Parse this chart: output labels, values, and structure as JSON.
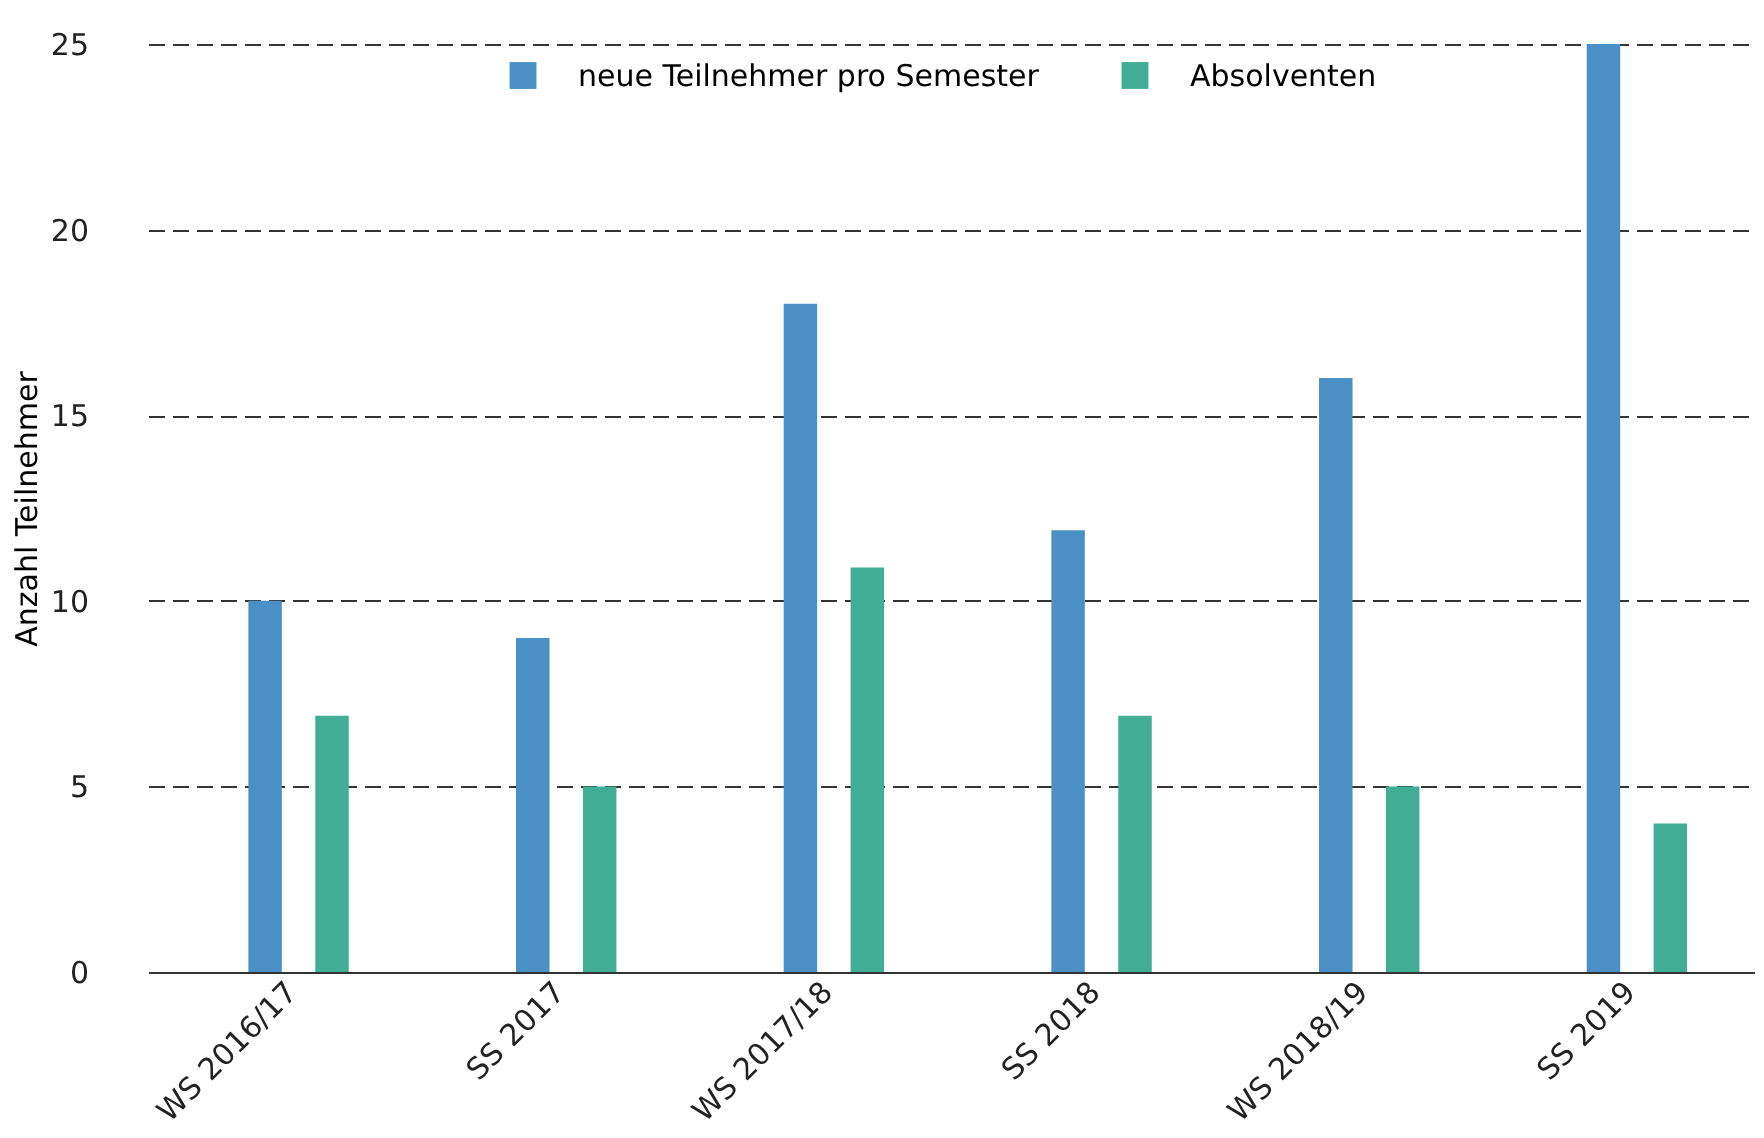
{
  "chart_data": {
    "type": "bar",
    "ylabel": "Anzahl Teilnehmer",
    "categories": [
      "WS 2016/17",
      "SS 2017",
      "WS 2017/18",
      "SS 2018",
      "WS 2018/19",
      "SS  2019"
    ],
    "series": [
      {
        "name": "neue Teilnehmer pro Semester",
        "color": "#4a90c4",
        "values": [
          10,
          9,
          18,
          11.9,
          16,
          25
        ]
      },
      {
        "name": "Absolventen",
        "color": "#40ad94",
        "values": [
          6.9,
          5,
          10.9,
          6.9,
          5,
          4
        ]
      }
    ],
    "ylim": [
      0,
      25
    ],
    "yticks": [
      0,
      5,
      10,
      15,
      20,
      25
    ],
    "grid": "y",
    "legend": "top"
  }
}
